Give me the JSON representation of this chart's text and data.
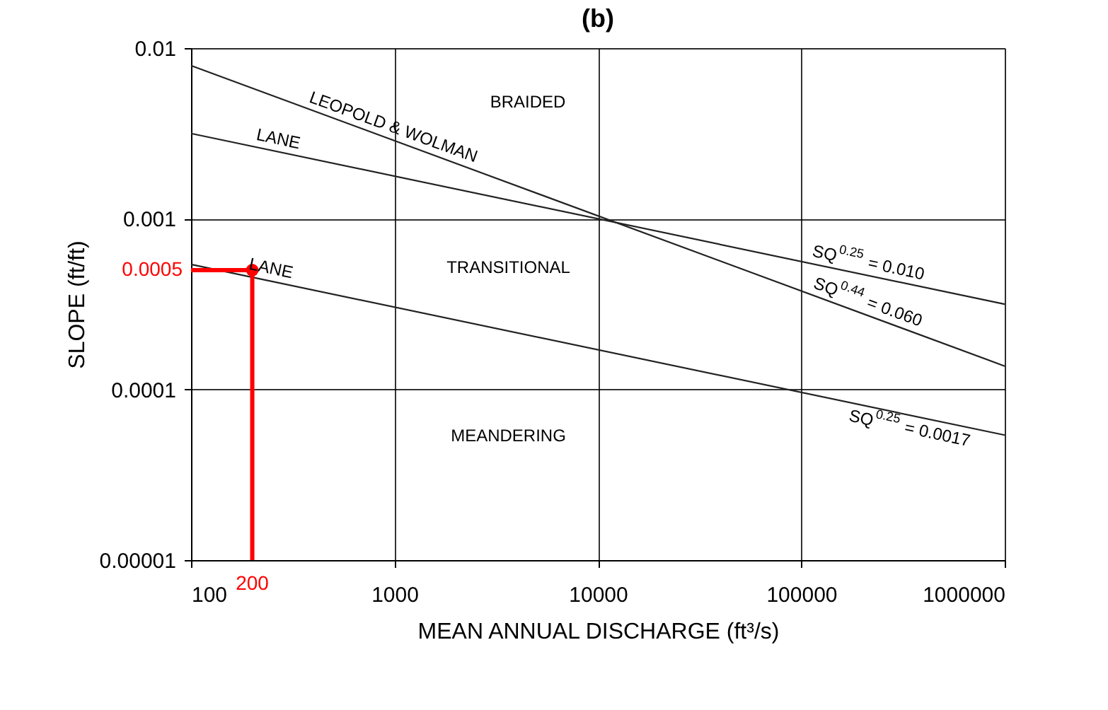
{
  "chart_data": {
    "type": "line",
    "title": "(b)",
    "xlabel": "MEAN ANNUAL DISCHARGE (ft³/s)",
    "ylabel": "SLOPE (ft/ft)",
    "log": "xy",
    "grid": true,
    "marker": "none",
    "line_style": "solid",
    "xlim": [
      100,
      1000000
    ],
    "xticks": [
      100,
      1000,
      10000,
      100000,
      1000000
    ],
    "ylim": [
      1e-05,
      0.01
    ],
    "yticks": [
      {
        "value": 1e-05,
        "label": "0.00001"
      },
      0.0001,
      0.001,
      0.01
    ],
    "series": [
      {
        "color": "#222222",
        "x": [
          100,
          1000000
        ],
        "values": [
          0.0079,
          0.000137
        ]
      },
      {
        "color": "#222222",
        "x": [
          100,
          1000000
        ],
        "values": [
          0.00316,
          0.000316
        ]
      },
      {
        "color": "#222222",
        "x": [
          100,
          1000000
        ],
        "values": [
          0.00054,
          5.4e-05
        ]
      },
      {
        "color": "#ff0000",
        "x": [
          100,
          200,
          200
        ],
        "values": [
          0.0005,
          0.0005,
          1e-05
        ]
      },
      {
        "type": "scatter",
        "marker": "circle",
        "color": "#ff0000",
        "x": [
          200
        ],
        "values": [
          0.0005
        ]
      }
    ],
    "annotations": [
      "BRAIDED",
      {
        "text": "LEOPOLD & WOLMAN",
        "x": 942,
        "y": 0.00294
      },
      {
        "text": "LANE",
        "x": 261,
        "y": 0.00249
      },
      {
        "text": "LANE",
        "x": 240,
        "y": 0.000434
      },
      "TRANSITIONAL",
      "MEANDERING",
      {
        "text": "SQ$^{0.25}$ = 0.010",
        "x": 236000,
        "y": 0.000454
      },
      {
        "text": "SQ$^{0.44}$ = 0.060",
        "x": 229000,
        "y": 0.000263
      },
      {
        "text": "SQ$^{0.25}$ = 0.0017",
        "x": 400000,
        "y": 6.79e-05
      },
      {
        "text": "0.0005",
        "x": 100,
        "y": 0.0005
      },
      {
        "text": "200",
        "x": 200,
        "y": 1e-05
      }
    ]
  }
}
